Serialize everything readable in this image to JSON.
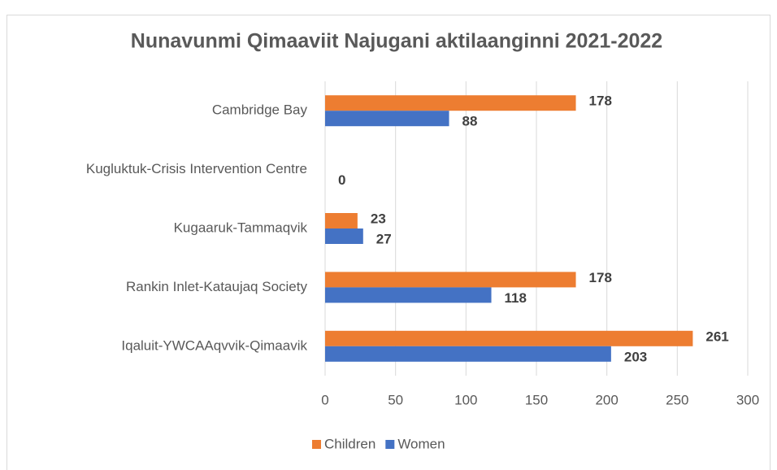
{
  "chart_data": {
    "type": "bar",
    "orientation": "horizontal",
    "title": "Nunavunmi Qimaaviit Najugani aktilaanginni 2021-2022",
    "categories": [
      "Cambridge Bay",
      "Kugluktuk-Crisis Intervention Centre",
      "Kugaaruk-Tammaqvik",
      "Rankin Inlet-Kataujaq Society",
      "Iqaluit-YWCAAqvvik-Qimaavik"
    ],
    "series": [
      {
        "name": "Children",
        "color": "#ed7d31",
        "values": [
          178,
          null,
          23,
          178,
          261
        ]
      },
      {
        "name": "Women",
        "color": "#4472c4",
        "values": [
          88,
          0,
          27,
          118,
          203
        ]
      }
    ],
    "xlim": [
      0,
      300
    ],
    "xticks": [
      0,
      50,
      100,
      150,
      200,
      250,
      300
    ],
    "grid": true,
    "legend": "bottom"
  }
}
